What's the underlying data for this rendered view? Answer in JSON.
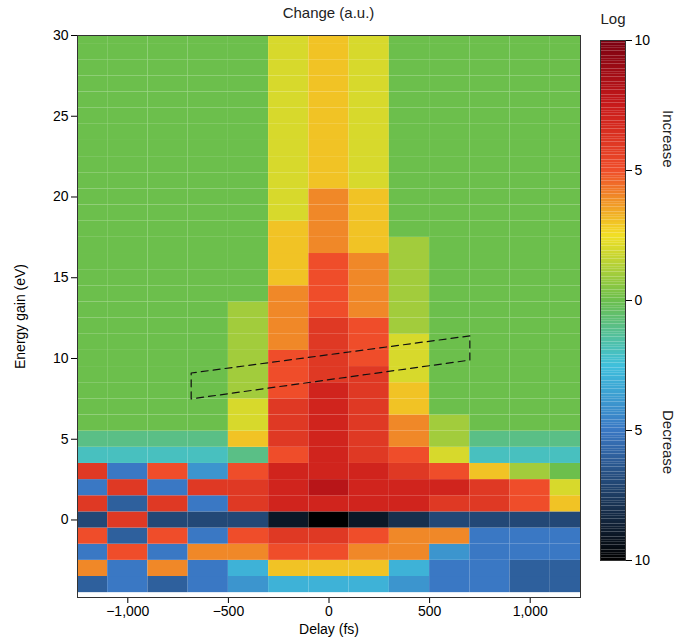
{
  "chart_data": {
    "type": "heatmap",
    "title": "Change (a.u.)",
    "x_label": "Delay (fs)",
    "y_label": "Energy gain (eV)",
    "x": [
      -1200,
      -1000,
      -800,
      -600,
      -400,
      -200,
      0,
      200,
      400,
      600,
      800,
      1000,
      1200
    ],
    "y": [
      -4,
      -3,
      -2,
      -1,
      0,
      1,
      2,
      3,
      4,
      5,
      6,
      7,
      8,
      9,
      10,
      11,
      12,
      13,
      14,
      15,
      16,
      17,
      18,
      19,
      20,
      21,
      22,
      23,
      24,
      25,
      26,
      27,
      28,
      29,
      30
    ],
    "values": [
      [
        -6,
        -5,
        -6,
        -5,
        -4,
        -3,
        -3,
        -3,
        -4,
        -5,
        -5,
        -6,
        -6
      ],
      [
        4,
        -5,
        4,
        -5,
        -3,
        3,
        3,
        3,
        -3,
        -5,
        -5,
        -6,
        -6
      ],
      [
        -5,
        5,
        -5,
        4,
        4,
        5,
        5,
        4,
        4,
        -4,
        -5,
        -5,
        -5
      ],
      [
        5,
        -6,
        5,
        -5,
        5,
        6,
        6,
        5,
        4,
        4,
        -5,
        -5,
        -5
      ],
      [
        -7,
        6,
        -7,
        -7,
        -7,
        -9,
        -10,
        -9,
        -8,
        -7,
        -7,
        -7,
        -7
      ],
      [
        6,
        -6,
        6,
        -5,
        6,
        7,
        7,
        7,
        7,
        6,
        6,
        5,
        3
      ],
      [
        -5,
        6,
        -5,
        6,
        6,
        7,
        8,
        7,
        7,
        7,
        6,
        5,
        2
      ],
      [
        6,
        -5,
        5,
        -4,
        5,
        7,
        7,
        7,
        6,
        5,
        3,
        1,
        0
      ],
      [
        -2,
        -2,
        -2,
        -2,
        -1,
        5,
        7,
        6,
        5,
        2,
        -2,
        -2,
        -2
      ],
      [
        -1,
        -1,
        -1,
        -1,
        3,
        6,
        7,
        6,
        4,
        1,
        -1,
        -1,
        -1
      ],
      [
        0,
        0,
        0,
        0,
        2,
        6,
        7,
        6,
        4,
        1,
        0,
        0,
        0
      ],
      [
        0,
        0,
        0,
        0,
        2,
        6,
        7,
        6,
        3,
        0,
        0,
        0,
        0
      ],
      [
        0,
        0,
        0,
        0,
        1,
        5,
        7,
        6,
        3,
        0,
        0,
        0,
        0
      ],
      [
        0,
        0,
        0,
        0,
        1,
        5,
        6,
        6,
        2,
        0,
        0,
        0,
        0
      ],
      [
        0,
        0,
        0,
        0,
        1,
        5,
        6,
        5,
        2,
        0,
        0,
        0,
        0
      ],
      [
        0,
        0,
        0,
        0,
        1,
        4,
        6,
        5,
        2,
        0,
        0,
        0,
        0
      ],
      [
        0,
        0,
        0,
        0,
        1,
        4,
        6,
        5,
        1,
        0,
        0,
        0,
        0
      ],
      [
        0,
        0,
        0,
        0,
        1,
        4,
        5,
        4,
        1,
        0,
        0,
        0,
        0
      ],
      [
        0,
        0,
        0,
        0,
        0,
        4,
        5,
        4,
        1,
        0,
        0,
        0,
        0
      ],
      [
        0,
        0,
        0,
        0,
        0,
        3,
        5,
        4,
        1,
        0,
        0,
        0,
        0
      ],
      [
        0,
        0,
        0,
        0,
        0,
        3,
        5,
        4,
        1,
        0,
        0,
        0,
        0
      ],
      [
        0,
        0,
        0,
        0,
        0,
        3,
        4,
        3,
        1,
        0,
        0,
        0,
        0
      ],
      [
        0,
        0,
        0,
        0,
        0,
        3,
        4,
        3,
        0,
        0,
        0,
        0,
        0
      ],
      [
        0,
        0,
        0,
        0,
        0,
        2,
        4,
        3,
        0,
        0,
        0,
        0,
        0
      ],
      [
        0,
        0,
        0,
        0,
        0,
        2,
        4,
        3,
        0,
        0,
        0,
        0,
        0
      ],
      [
        0,
        0,
        0,
        0,
        0,
        2,
        3,
        2,
        0,
        0,
        0,
        0,
        0
      ],
      [
        0,
        0,
        0,
        0,
        0,
        2,
        3,
        2,
        0,
        0,
        0,
        0,
        0
      ],
      [
        0,
        0,
        0,
        0,
        0,
        2,
        3,
        2,
        0,
        0,
        0,
        0,
        0
      ],
      [
        0,
        0,
        0,
        0,
        0,
        2,
        3,
        2,
        0,
        0,
        0,
        0,
        0
      ],
      [
        0,
        0,
        0,
        0,
        0,
        2,
        3,
        2,
        0,
        0,
        0,
        0,
        0
      ],
      [
        0,
        0,
        0,
        0,
        0,
        2,
        3,
        2,
        0,
        0,
        0,
        0,
        0
      ],
      [
        0,
        0,
        0,
        0,
        0,
        2,
        3,
        2,
        0,
        0,
        0,
        0,
        0
      ],
      [
        0,
        0,
        0,
        0,
        0,
        2,
        3,
        2,
        0,
        0,
        0,
        0,
        0
      ],
      [
        0,
        0,
        0,
        0,
        0,
        2,
        3,
        2,
        0,
        0,
        0,
        0,
        0
      ],
      [
        0,
        0,
        0,
        0,
        0,
        2,
        3,
        2,
        0,
        0,
        0,
        0,
        0
      ]
    ],
    "xlim": [
      -1250,
      1250
    ],
    "ylim": [
      -4.8,
      30
    ],
    "xticks": [
      {
        "value": -1000,
        "label": "−1,000"
      },
      {
        "value": -500,
        "label": "−500"
      },
      0,
      500,
      {
        "value": 1000,
        "label": "1,000"
      }
    ],
    "yticks": [
      0,
      5,
      10,
      15,
      20,
      25,
      30
    ],
    "colorbar": {
      "title": "Log",
      "range": [
        -10,
        10
      ],
      "ticks": [
        {
          "value": -10,
          "label": "10"
        },
        {
          "value": -5,
          "label": "5"
        },
        0,
        5,
        10
      ],
      "increase_label": "Increase",
      "decrease_label": "Decrease"
    },
    "annotation_box": {
      "x": [
        -685,
        -685,
        700,
        700
      ],
      "y": [
        7.5,
        9.1,
        11.4,
        9.9
      ]
    }
  }
}
